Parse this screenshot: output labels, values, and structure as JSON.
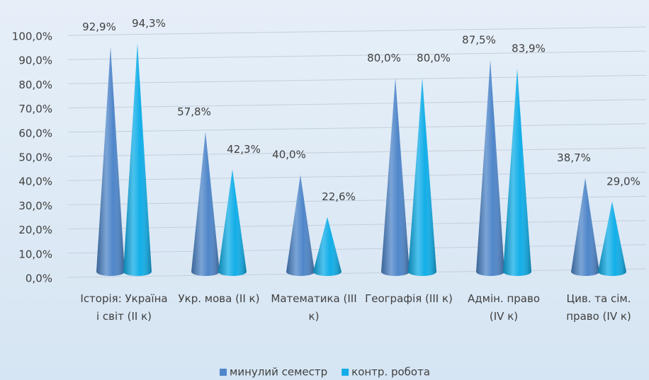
{
  "chart_data": {
    "type": "cone-bar",
    "categories": [
      "Історія: Україна і світ (ІІ к)",
      "Укр. мова (ІІ к)",
      "Математика (ІІІ к)",
      "Географія (ІІІ к)",
      "Адмін. право (IV к)",
      "Цив. та сім. право (IV к)"
    ],
    "series": [
      {
        "name": "минулий семестр",
        "color": "#4f86c9",
        "values": [
          92.9,
          57.8,
          40.0,
          80.0,
          87.5,
          38.7
        ],
        "value_labels": [
          "92,9%",
          "57,8%",
          "40,0%",
          "80,0%",
          "87,5%",
          "38,7%"
        ]
      },
      {
        "name": "контр. робота",
        "color": "#12aee8",
        "values": [
          94.3,
          42.3,
          22.6,
          80.0,
          83.9,
          29.0
        ],
        "value_labels": [
          "94,3%",
          "42,3%",
          "22,6%",
          "80,0%",
          "83,9%",
          "29,0%"
        ]
      }
    ],
    "ylim": [
      0,
      100
    ],
    "yticks": [
      {
        "value": 0,
        "label": "0,0%"
      },
      {
        "value": 10,
        "label": "10,0%"
      },
      {
        "value": 20,
        "label": "20,0%"
      },
      {
        "value": 30,
        "label": "30,0%"
      },
      {
        "value": 40,
        "label": "40,0%"
      },
      {
        "value": 50,
        "label": "50,0%"
      },
      {
        "value": 60,
        "label": "60,0%"
      },
      {
        "value": 70,
        "label": "70,0%"
      },
      {
        "value": 80,
        "label": "80,0%"
      },
      {
        "value": 90,
        "label": "90,0%"
      },
      {
        "value": 100,
        "label": "100,0%"
      }
    ],
    "grid": true,
    "legend": "bottom"
  }
}
